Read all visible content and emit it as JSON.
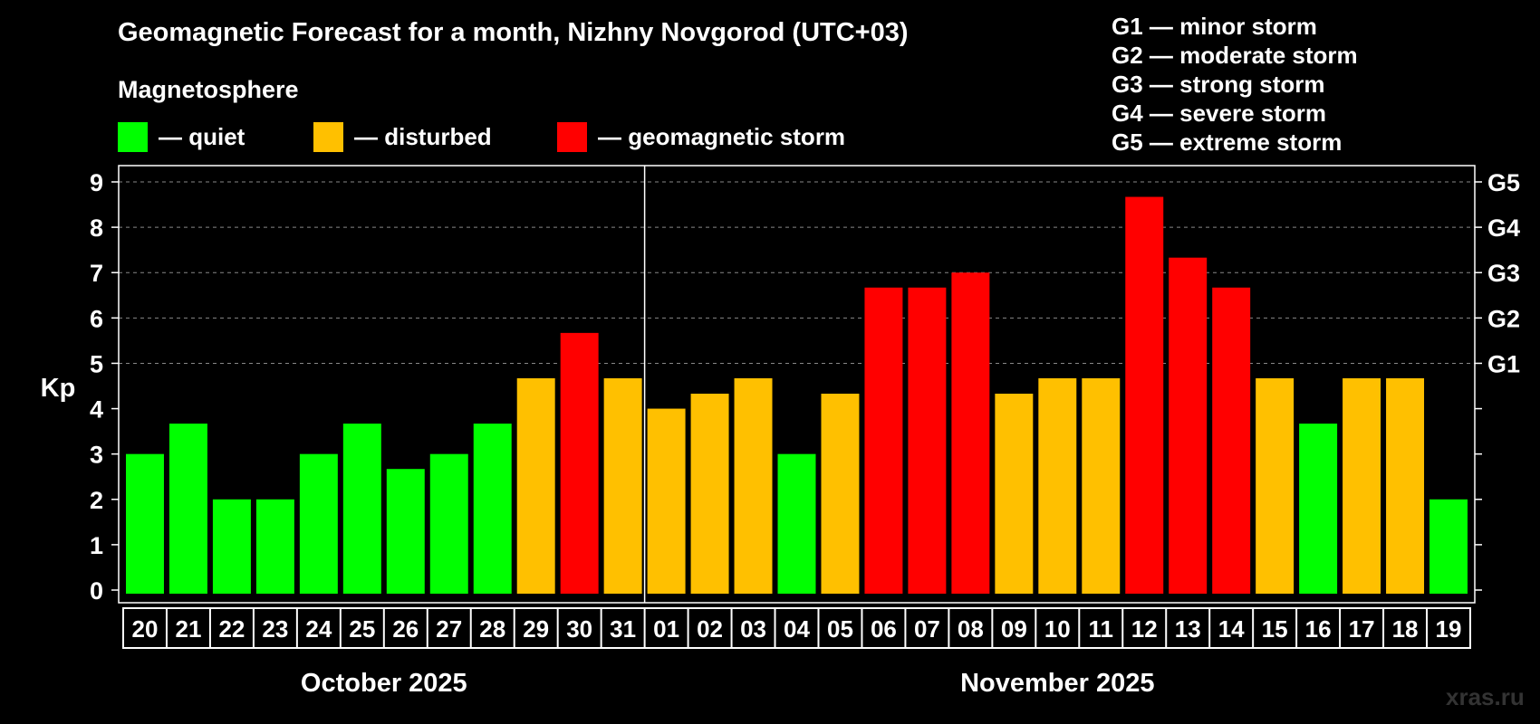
{
  "title": "Geomagnetic Forecast for a month, Nizhny Novgorod (UTC+03)",
  "magnetosphere_label": "Magnetosphere",
  "legend": [
    {
      "color": "#00ff00",
      "label": "— quiet"
    },
    {
      "color": "#ffc000",
      "label": "— disturbed"
    },
    {
      "color": "#ff0000",
      "label": "— geomagnetic storm"
    }
  ],
  "storm_levels": [
    "G1 — minor storm",
    "G2 — moderate storm",
    "G3 — strong storm",
    "G4 — severe storm",
    "G5 — extreme storm"
  ],
  "watermark": "xras.ru",
  "chart_data": {
    "type": "bar",
    "title": "Geomagnetic Forecast for a month, Nizhny Novgorod (UTC+03)",
    "ylabel": "Kp",
    "ylim": [
      0,
      9
    ],
    "yticks": [
      0,
      1,
      2,
      3,
      4,
      5,
      6,
      7,
      8,
      9
    ],
    "right_axis_labels": [
      {
        "kp": 5,
        "label": "G1"
      },
      {
        "kp": 6,
        "label": "G2"
      },
      {
        "kp": 7,
        "label": "G3"
      },
      {
        "kp": 8,
        "label": "G4"
      },
      {
        "kp": 9,
        "label": "G5"
      }
    ],
    "grid": "dashed horizontal at Kp 5-9",
    "categories": [
      "20",
      "21",
      "22",
      "23",
      "24",
      "25",
      "26",
      "27",
      "28",
      "29",
      "30",
      "31",
      "01",
      "02",
      "03",
      "04",
      "05",
      "06",
      "07",
      "08",
      "09",
      "10",
      "11",
      "12",
      "13",
      "14",
      "15",
      "16",
      "17",
      "18",
      "19"
    ],
    "values": [
      3.0,
      3.67,
      2.0,
      2.0,
      3.0,
      3.67,
      2.67,
      3.0,
      3.67,
      4.67,
      5.67,
      4.67,
      4.0,
      4.33,
      4.67,
      3.0,
      4.33,
      6.67,
      6.67,
      7.0,
      4.33,
      4.67,
      4.67,
      8.67,
      7.33,
      6.67,
      4.67,
      3.67,
      4.67,
      4.67,
      2.0
    ],
    "status": [
      "quiet",
      "quiet",
      "quiet",
      "quiet",
      "quiet",
      "quiet",
      "quiet",
      "quiet",
      "quiet",
      "disturbed",
      "storm",
      "disturbed",
      "disturbed",
      "disturbed",
      "disturbed",
      "quiet",
      "disturbed",
      "storm",
      "storm",
      "storm",
      "disturbed",
      "disturbed",
      "disturbed",
      "storm",
      "storm",
      "storm",
      "disturbed",
      "quiet",
      "disturbed",
      "disturbed",
      "quiet"
    ],
    "status_colors": {
      "quiet": "#00ff00",
      "disturbed": "#ffc000",
      "storm": "#ff0000"
    },
    "months": [
      {
        "label": "October 2025",
        "start": 0,
        "count": 12
      },
      {
        "label": "November 2025",
        "start": 12,
        "count": 19
      }
    ]
  }
}
